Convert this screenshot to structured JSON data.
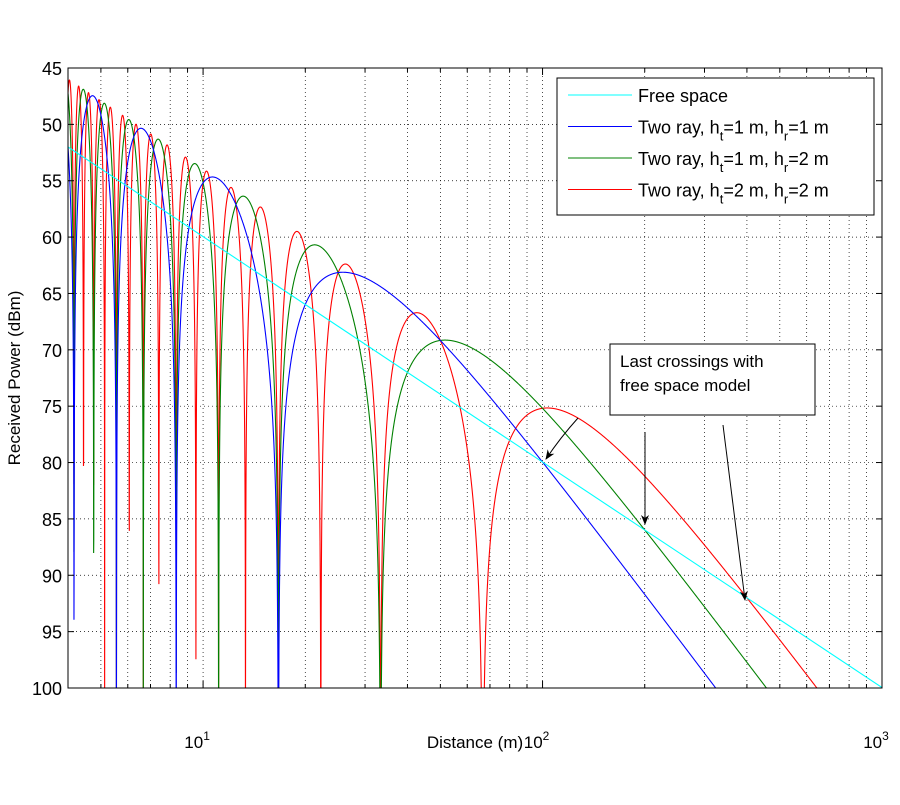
{
  "chart_data": {
    "type": "line",
    "title": "",
    "xlabel": "Distance (m)",
    "ylabel": "Received Power (dBm)",
    "xscale": "log",
    "xlim": [
      4,
      1000
    ],
    "ylim": [
      45,
      100
    ],
    "y_axis_direction": "increasing downward",
    "grid": true,
    "legend_position": "top-right",
    "xticks": [
      {
        "value": 10,
        "base": "10",
        "exp": "1"
      },
      {
        "value": 100,
        "base": "10",
        "exp": "2"
      },
      {
        "value": 1000,
        "base": "10",
        "exp": "3"
      }
    ],
    "yticks": [
      "45",
      "50",
      "55",
      "60",
      "65",
      "70",
      "75",
      "80",
      "85",
      "90",
      "95",
      "100"
    ],
    "series": [
      {
        "name": "Free space",
        "color": "#00ffff",
        "kind": "free-space",
        "points": [
          [
            4,
            52
          ],
          [
            10,
            60
          ],
          [
            100,
            80
          ],
          [
            1000,
            100
          ]
        ]
      },
      {
        "name_parts": [
          "Two ray, h",
          "t",
          "=1 m, h",
          "r",
          "=1 m"
        ],
        "color": "#0000ff",
        "ht": 1,
        "hr": 1,
        "last_crossing": [
          100,
          80
        ],
        "last_peak": [
          25,
          62.8
        ]
      },
      {
        "name_parts": [
          "Two ray, h",
          "t",
          "=1 m, h",
          "r",
          "=2 m"
        ],
        "color": "#008000",
        "ht": 1,
        "hr": 2,
        "last_crossing": [
          200,
          86
        ],
        "last_peak": [
          50,
          68.9
        ]
      },
      {
        "name_parts": [
          "Two ray, h",
          "t",
          "=2 m, h",
          "r",
          "=2 m"
        ],
        "color": "#ff0000",
        "ht": 2,
        "hr": 2,
        "last_crossing": [
          400,
          92
        ],
        "last_peak": [
          100,
          75
        ]
      }
    ],
    "annotation": {
      "lines": [
        "Last crossings with",
        "free space model"
      ]
    }
  }
}
